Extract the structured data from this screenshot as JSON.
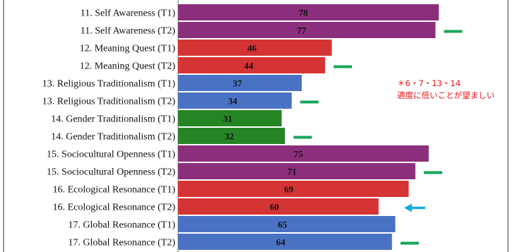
{
  "chart_data": {
    "type": "bar",
    "orientation": "horizontal",
    "categories": [
      "11. Self Awareness (T1)",
      "11. Self Awareness (T2)",
      "12. Meaning Quest (T1)",
      "12. Meaning Quest (T2)",
      "13. Religious Traditionalism (T1)",
      "13. Religious Traditionalism (T2)",
      "14. Gender Traditionalism (T1)",
      "14. Gender Traditionalism (T2)",
      "15. Sociocultural Openness (T1)",
      "15. Sociocultural Openness (T2)",
      "16. Ecological Resonance (T1)",
      "16. Ecological Resonance (T2)",
      "17. Global Resonance (T1)",
      "17. Global Resonance (T2)"
    ],
    "values": [
      78,
      77,
      46,
      44,
      37,
      34,
      31,
      32,
      75,
      71,
      69,
      60,
      65,
      64
    ],
    "bar_colors": [
      "#8b2f7d",
      "#8b2f7d",
      "#d53434",
      "#d53434",
      "#4a72c4",
      "#4a72c4",
      "#258525",
      "#258525",
      "#8b2f7d",
      "#8b2f7d",
      "#d53434",
      "#d53434",
      "#4a72c4",
      "#4a72c4"
    ],
    "xlim": [
      0,
      100
    ],
    "grid": false,
    "title": "",
    "xlabel": "",
    "ylabel": "",
    "markers": [
      {
        "row": 1,
        "kind": "dash",
        "color": "#1aa55a"
      },
      {
        "row": 3,
        "kind": "dash",
        "color": "#1aa55a"
      },
      {
        "row": 5,
        "kind": "dash",
        "color": "#1aa55a"
      },
      {
        "row": 7,
        "kind": "dash",
        "color": "#1aa55a"
      },
      {
        "row": 9,
        "kind": "dash",
        "color": "#1aa55a"
      },
      {
        "row": 11,
        "kind": "arrow-left",
        "color": "#1aa8e0"
      },
      {
        "row": 13,
        "kind": "dash",
        "color": "#1aa55a"
      }
    ],
    "annotation": {
      "line1": "＊6・7・13・14",
      "line2": "適度に低いことが望ましい",
      "color": "#ee1111"
    }
  }
}
